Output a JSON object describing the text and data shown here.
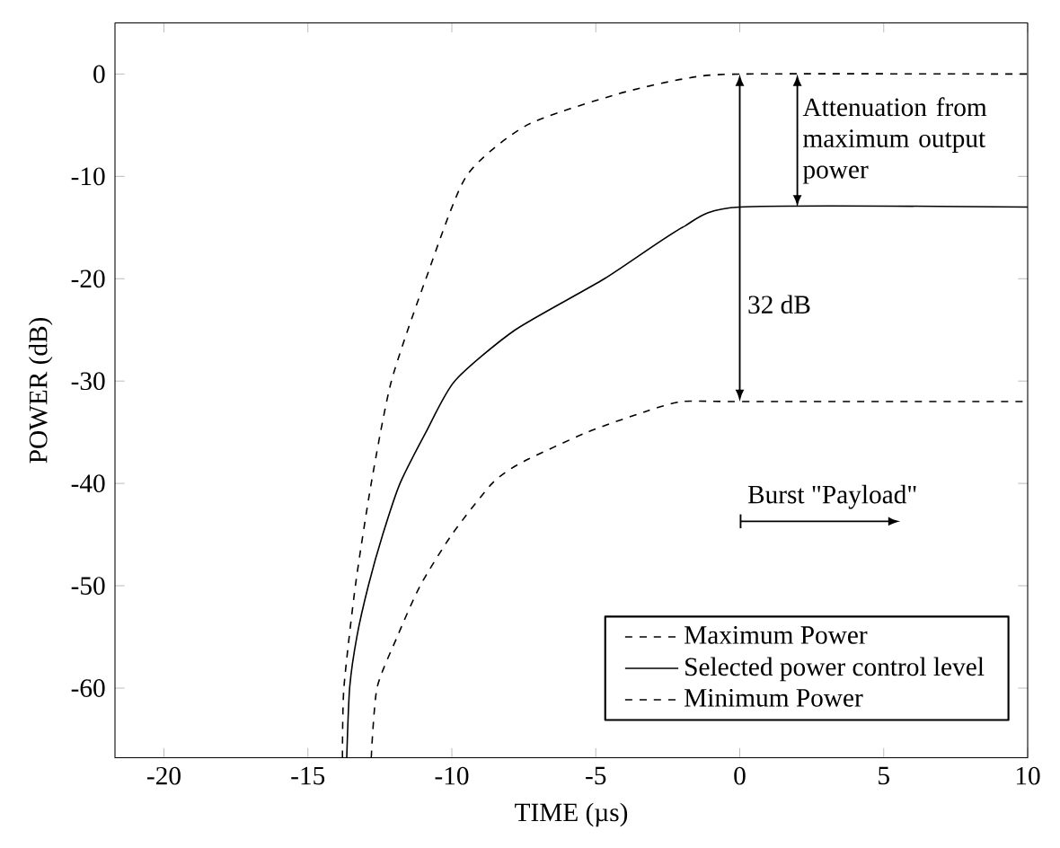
{
  "chart_data": {
    "type": "line",
    "xlabel": "TIME  (µs)",
    "ylabel": "POWER (dB)",
    "xlim": [
      -21.7,
      10
    ],
    "ylim": [
      -66.8,
      5
    ],
    "xticks": [
      -20,
      -15,
      -10,
      -5,
      0,
      5,
      10
    ],
    "yticks": [
      0,
      -10,
      -20,
      -30,
      -40,
      -50,
      -60
    ],
    "grid": false,
    "legend": "bottom right",
    "marker": "none",
    "series": [
      {
        "name": "Maximum Power",
        "color": "#000000",
        "line_style": "dashed",
        "x": [
          -13.8,
          -13.75,
          -13.35,
          -12.8,
          -12.1,
          -10.9,
          -9.5,
          -7.4,
          -4.3,
          -2,
          0,
          10
        ],
        "values": [
          -66.8,
          -60,
          -50,
          -40,
          -30,
          -20,
          -10,
          -5,
          -2,
          -0.5,
          0,
          0
        ]
      },
      {
        "name": "Selected power control level",
        "color": "#000000",
        "line_style": "solid",
        "x": [
          -13.65,
          -13.55,
          -13.3,
          -12.9,
          -12.4,
          -11.8,
          -10.9,
          -9.9,
          -7.8,
          -4.7,
          -2,
          0,
          10
        ],
        "values": [
          -66.8,
          -60,
          -55,
          -50,
          -45,
          -40,
          -35,
          -30,
          -25,
          -20,
          -15,
          -13,
          -13
        ]
      },
      {
        "name": "Minimum Power",
        "color": "#000000",
        "line_style": "dashed",
        "x": [
          -12.8,
          -12.6,
          -11.9,
          -11.1,
          -10,
          -8.6,
          -7.6,
          -5.3,
          -3.3,
          -2,
          0,
          10
        ],
        "values": [
          -66.8,
          -60,
          -55,
          -50,
          -45,
          -40,
          -38,
          -35,
          -33,
          -32,
          -32,
          -32
        ]
      }
    ],
    "annotations": [
      {
        "text": "Attenuation from maximum output power",
        "x": 2,
        "y": -13
      },
      "32 dB",
      "Burst \"Payload\""
    ]
  }
}
